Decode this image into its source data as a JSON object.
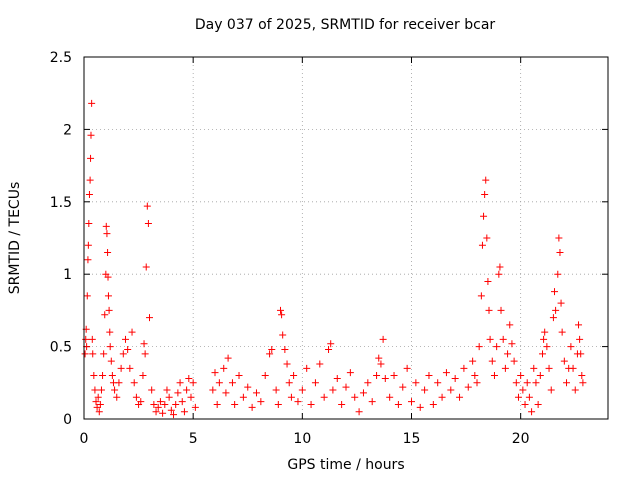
{
  "chart_data": {
    "type": "scatter",
    "title": "Day 037 of 2025, SRMTID for receiver bcar",
    "xlabel": "GPS time / hours",
    "ylabel": "SRMTID / TECUs",
    "xlim": [
      0,
      24
    ],
    "ylim": [
      0,
      2.5
    ],
    "x_ticks": [
      0,
      5,
      10,
      15,
      20
    ],
    "y_ticks": [
      0,
      0.5,
      1,
      1.5,
      2,
      2.5
    ],
    "x_tick_labels": [
      "0",
      "5",
      "10",
      "15",
      "20"
    ],
    "y_tick_labels": [
      "0",
      "0.5",
      "1",
      "1.5",
      "2",
      "2.5"
    ],
    "grid": true,
    "marker": "+",
    "color": "#ff0000",
    "series": [
      {
        "name": "SRMTID",
        "points": [
          [
            0.05,
            0.45
          ],
          [
            0.08,
            0.55
          ],
          [
            0.1,
            0.62
          ],
          [
            0.12,
            0.5
          ],
          [
            0.15,
            0.85
          ],
          [
            0.18,
            1.1
          ],
          [
            0.2,
            1.2
          ],
          [
            0.22,
            1.35
          ],
          [
            0.25,
            1.55
          ],
          [
            0.28,
            1.65
          ],
          [
            0.3,
            1.8
          ],
          [
            0.32,
            1.96
          ],
          [
            0.35,
            2.18
          ],
          [
            0.38,
            0.55
          ],
          [
            0.4,
            0.45
          ],
          [
            0.45,
            0.3
          ],
          [
            0.5,
            0.2
          ],
          [
            0.55,
            0.12
          ],
          [
            0.6,
            0.08
          ],
          [
            0.65,
            0.15
          ],
          [
            0.7,
            0.05
          ],
          [
            0.75,
            0.1
          ],
          [
            0.8,
            0.2
          ],
          [
            0.85,
            0.3
          ],
          [
            0.9,
            0.45
          ],
          [
            0.95,
            0.72
          ],
          [
            1.0,
            1.0
          ],
          [
            1.02,
            1.33
          ],
          [
            1.05,
            1.28
          ],
          [
            1.08,
            1.15
          ],
          [
            1.1,
            0.98
          ],
          [
            1.12,
            0.85
          ],
          [
            1.15,
            0.75
          ],
          [
            1.18,
            0.6
          ],
          [
            1.2,
            0.5
          ],
          [
            1.25,
            0.4
          ],
          [
            1.3,
            0.3
          ],
          [
            1.35,
            0.25
          ],
          [
            1.4,
            0.2
          ],
          [
            1.5,
            0.15
          ],
          [
            1.6,
            0.25
          ],
          [
            1.7,
            0.35
          ],
          [
            1.8,
            0.45
          ],
          [
            1.9,
            0.55
          ],
          [
            2.0,
            0.48
          ],
          [
            2.1,
            0.35
          ],
          [
            2.2,
            0.6
          ],
          [
            2.3,
            0.25
          ],
          [
            2.4,
            0.15
          ],
          [
            2.5,
            0.1
          ],
          [
            2.6,
            0.12
          ],
          [
            2.7,
            0.3
          ],
          [
            2.75,
            0.52
          ],
          [
            2.8,
            0.45
          ],
          [
            2.85,
            1.05
          ],
          [
            2.9,
            1.47
          ],
          [
            2.95,
            1.35
          ],
          [
            3.0,
            0.7
          ],
          [
            3.1,
            0.2
          ],
          [
            3.2,
            0.1
          ],
          [
            3.3,
            0.05
          ],
          [
            3.4,
            0.08
          ],
          [
            3.5,
            0.12
          ],
          [
            3.6,
            0.04
          ],
          [
            3.7,
            0.1
          ],
          [
            3.8,
            0.2
          ],
          [
            3.9,
            0.15
          ],
          [
            4.0,
            0.06
          ],
          [
            4.1,
            0.03
          ],
          [
            4.2,
            0.1
          ],
          [
            4.3,
            0.18
          ],
          [
            4.4,
            0.25
          ],
          [
            4.5,
            0.12
          ],
          [
            4.6,
            0.05
          ],
          [
            4.7,
            0.2
          ],
          [
            4.8,
            0.28
          ],
          [
            4.9,
            0.15
          ],
          [
            5.0,
            0.25
          ],
          [
            5.1,
            0.08
          ],
          [
            5.9,
            0.2
          ],
          [
            6.0,
            0.32
          ],
          [
            6.1,
            0.1
          ],
          [
            6.2,
            0.25
          ],
          [
            6.4,
            0.35
          ],
          [
            6.5,
            0.18
          ],
          [
            6.6,
            0.42
          ],
          [
            6.8,
            0.25
          ],
          [
            6.9,
            0.1
          ],
          [
            7.1,
            0.3
          ],
          [
            7.3,
            0.15
          ],
          [
            7.5,
            0.22
          ],
          [
            7.7,
            0.08
          ],
          [
            7.9,
            0.18
          ],
          [
            8.1,
            0.12
          ],
          [
            8.3,
            0.3
          ],
          [
            8.5,
            0.45
          ],
          [
            8.6,
            0.48
          ],
          [
            8.8,
            0.2
          ],
          [
            8.9,
            0.1
          ],
          [
            9.0,
            0.75
          ],
          [
            9.05,
            0.72
          ],
          [
            9.1,
            0.58
          ],
          [
            9.2,
            0.48
          ],
          [
            9.3,
            0.38
          ],
          [
            9.4,
            0.25
          ],
          [
            9.5,
            0.15
          ],
          [
            9.6,
            0.3
          ],
          [
            9.8,
            0.12
          ],
          [
            10.0,
            0.2
          ],
          [
            10.2,
            0.35
          ],
          [
            10.4,
            0.1
          ],
          [
            10.6,
            0.25
          ],
          [
            10.8,
            0.38
          ],
          [
            11.0,
            0.15
          ],
          [
            11.2,
            0.48
          ],
          [
            11.3,
            0.52
          ],
          [
            11.4,
            0.2
          ],
          [
            11.6,
            0.28
          ],
          [
            11.8,
            0.1
          ],
          [
            12.0,
            0.22
          ],
          [
            12.2,
            0.32
          ],
          [
            12.4,
            0.15
          ],
          [
            12.6,
            0.05
          ],
          [
            12.8,
            0.18
          ],
          [
            13.0,
            0.25
          ],
          [
            13.2,
            0.12
          ],
          [
            13.4,
            0.3
          ],
          [
            13.5,
            0.42
          ],
          [
            13.6,
            0.38
          ],
          [
            13.7,
            0.55
          ],
          [
            13.8,
            0.28
          ],
          [
            14.0,
            0.15
          ],
          [
            14.2,
            0.3
          ],
          [
            14.4,
            0.1
          ],
          [
            14.6,
            0.22
          ],
          [
            14.8,
            0.35
          ],
          [
            15.0,
            0.12
          ],
          [
            15.2,
            0.25
          ],
          [
            15.4,
            0.08
          ],
          [
            15.6,
            0.2
          ],
          [
            15.8,
            0.3
          ],
          [
            16.0,
            0.1
          ],
          [
            16.2,
            0.25
          ],
          [
            16.4,
            0.15
          ],
          [
            16.6,
            0.32
          ],
          [
            16.8,
            0.2
          ],
          [
            17.0,
            0.28
          ],
          [
            17.2,
            0.15
          ],
          [
            17.4,
            0.35
          ],
          [
            17.6,
            0.22
          ],
          [
            17.8,
            0.4
          ],
          [
            17.9,
            0.3
          ],
          [
            18.0,
            0.25
          ],
          [
            18.1,
            0.5
          ],
          [
            18.2,
            0.85
          ],
          [
            18.25,
            1.2
          ],
          [
            18.3,
            1.4
          ],
          [
            18.35,
            1.55
          ],
          [
            18.4,
            1.65
          ],
          [
            18.45,
            1.25
          ],
          [
            18.5,
            0.95
          ],
          [
            18.55,
            0.75
          ],
          [
            18.6,
            0.55
          ],
          [
            18.7,
            0.4
          ],
          [
            18.8,
            0.3
          ],
          [
            18.9,
            0.5
          ],
          [
            19.0,
            1.0
          ],
          [
            19.05,
            1.05
          ],
          [
            19.1,
            0.75
          ],
          [
            19.2,
            0.55
          ],
          [
            19.3,
            0.35
          ],
          [
            19.4,
            0.45
          ],
          [
            19.5,
            0.65
          ],
          [
            19.6,
            0.52
          ],
          [
            19.7,
            0.4
          ],
          [
            19.8,
            0.25
          ],
          [
            19.9,
            0.15
          ],
          [
            20.0,
            0.3
          ],
          [
            20.1,
            0.2
          ],
          [
            20.2,
            0.1
          ],
          [
            20.3,
            0.25
          ],
          [
            20.4,
            0.15
          ],
          [
            20.5,
            0.05
          ],
          [
            20.6,
            0.35
          ],
          [
            20.7,
            0.25
          ],
          [
            20.8,
            0.1
          ],
          [
            20.9,
            0.3
          ],
          [
            21.0,
            0.45
          ],
          [
            21.05,
            0.55
          ],
          [
            21.1,
            0.6
          ],
          [
            21.2,
            0.5
          ],
          [
            21.3,
            0.35
          ],
          [
            21.4,
            0.2
          ],
          [
            21.5,
            0.7
          ],
          [
            21.55,
            0.88
          ],
          [
            21.6,
            0.75
          ],
          [
            21.7,
            1.0
          ],
          [
            21.75,
            1.25
          ],
          [
            21.8,
            1.15
          ],
          [
            21.85,
            0.8
          ],
          [
            21.9,
            0.6
          ],
          [
            22.0,
            0.4
          ],
          [
            22.1,
            0.25
          ],
          [
            22.2,
            0.35
          ],
          [
            22.3,
            0.5
          ],
          [
            22.4,
            0.35
          ],
          [
            22.5,
            0.2
          ],
          [
            22.6,
            0.45
          ],
          [
            22.65,
            0.65
          ],
          [
            22.7,
            0.55
          ],
          [
            22.75,
            0.45
          ],
          [
            22.8,
            0.3
          ],
          [
            22.85,
            0.25
          ]
        ]
      }
    ]
  }
}
